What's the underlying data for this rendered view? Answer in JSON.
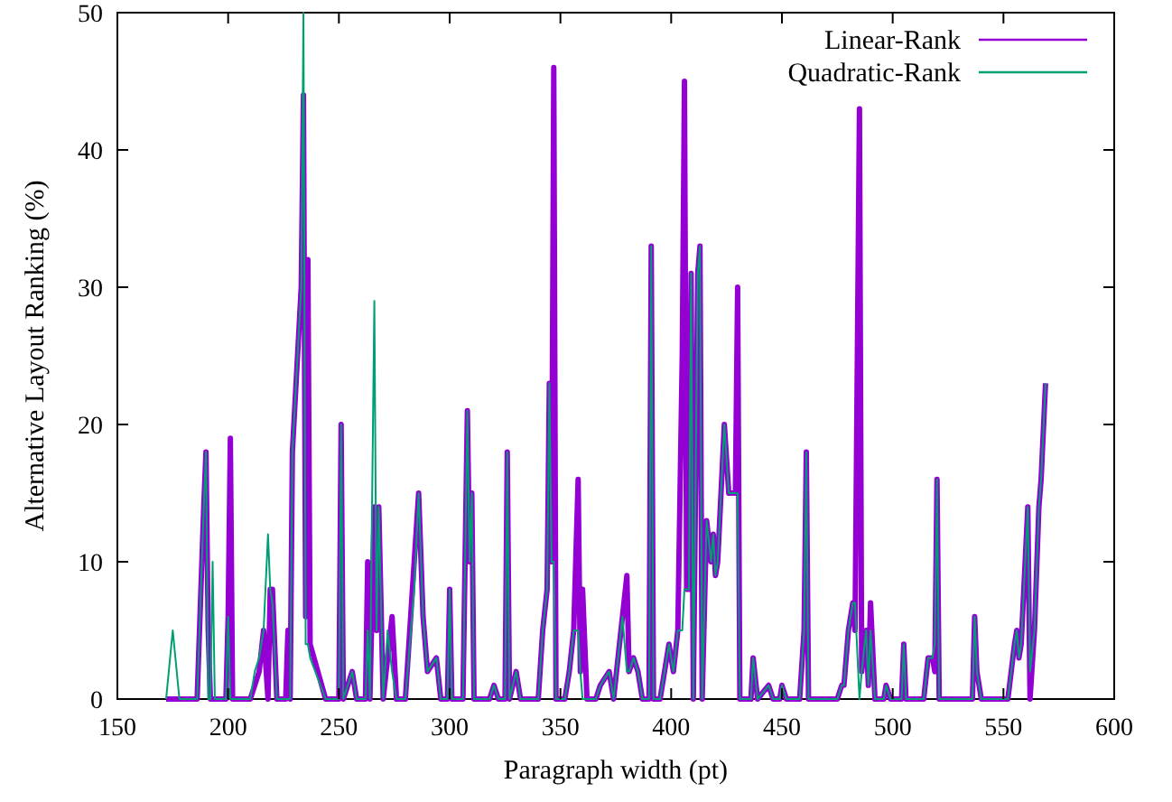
{
  "chart_data": {
    "type": "line",
    "xlabel": "Paragraph width (pt)",
    "ylabel": "Alternative Layout Ranking (%)",
    "xlim": [
      150,
      600
    ],
    "ylim": [
      0,
      50
    ],
    "xticks": [
      150,
      200,
      250,
      300,
      350,
      400,
      450,
      500,
      550,
      600
    ],
    "yticks": [
      0,
      10,
      20,
      30,
      40,
      50
    ],
    "grid": false,
    "legend": "top right",
    "marker": "none",
    "line_style": "solid",
    "x": [
      172,
      175,
      178,
      186,
      189,
      190,
      191,
      192,
      193,
      194,
      199,
      200,
      201,
      202,
      210,
      212,
      214,
      216,
      218,
      219,
      220,
      222,
      226,
      227,
      228,
      229,
      233,
      234,
      235,
      236,
      237,
      244,
      250,
      251,
      252,
      256,
      258,
      262,
      263,
      264,
      266,
      267,
      268,
      270,
      272,
      274,
      276,
      280,
      284,
      286,
      288,
      290,
      294,
      296,
      299,
      300,
      301,
      306,
      308,
      309,
      310,
      311,
      318,
      320,
      322,
      325,
      326,
      327,
      330,
      332,
      340,
      342,
      344,
      345,
      346,
      347,
      348,
      352,
      354,
      356,
      358,
      359,
      360,
      362,
      366,
      368,
      372,
      374,
      378,
      380,
      381,
      383,
      385,
      387,
      390,
      391,
      392,
      395,
      397,
      399,
      401,
      403,
      405,
      406,
      407,
      408,
      409,
      410,
      412,
      413,
      414,
      416,
      418,
      419,
      420,
      421,
      424,
      426,
      429,
      430,
      431,
      436,
      437,
      439,
      444,
      446,
      449,
      450,
      452,
      458,
      460,
      461,
      462,
      475,
      477,
      478,
      480,
      482,
      483,
      485,
      486,
      488,
      489,
      490,
      492,
      496,
      497,
      499,
      504,
      505,
      506,
      514,
      516,
      518,
      519,
      520,
      521,
      530,
      536,
      537,
      538,
      540,
      552,
      555,
      556,
      557,
      558,
      561,
      562,
      564,
      566,
      567,
      569
    ],
    "series": [
      {
        "name": "Linear-Rank",
        "color": "#9400d3",
        "values": [
          0,
          0,
          0,
          0,
          14,
          18,
          5,
          0,
          0,
          0,
          0,
          6,
          19,
          0,
          0,
          1,
          2,
          5,
          0,
          8,
          8,
          0,
          0,
          5,
          0,
          18,
          30,
          44,
          6,
          32,
          4,
          0,
          0,
          20,
          0,
          2,
          0,
          0,
          10,
          0,
          14,
          5,
          14,
          0,
          3,
          6,
          0,
          0,
          10,
          15,
          6,
          2,
          3,
          0,
          0,
          8,
          0,
          0,
          21,
          10,
          15,
          0,
          0,
          1,
          0,
          0,
          18,
          0,
          2,
          0,
          0,
          5,
          8,
          23,
          10,
          46,
          0,
          0,
          2,
          5,
          16,
          2,
          8,
          0,
          0,
          1,
          2,
          0,
          6,
          9,
          2,
          3,
          2,
          0,
          0,
          33,
          0,
          0,
          2,
          4,
          2,
          5,
          25,
          45,
          8,
          8,
          31,
          0,
          31,
          33,
          0,
          13,
          10,
          12,
          9,
          10,
          20,
          15,
          15,
          30,
          0,
          0,
          3,
          0,
          1,
          0,
          0,
          1,
          0,
          0,
          5,
          18,
          0,
          0,
          1,
          1,
          5,
          7,
          5,
          43,
          2,
          5,
          1,
          7,
          0,
          0,
          1,
          0,
          0,
          4,
          0,
          0,
          3,
          3,
          2,
          16,
          0,
          0,
          0,
          6,
          2,
          0,
          0,
          4,
          5,
          3,
          4,
          14,
          0,
          5,
          14,
          16,
          23
        ]
      },
      {
        "name": "Quadratic-Rank",
        "color": "#009e73",
        "values": [
          0,
          5,
          0,
          0,
          14,
          18,
          0,
          0,
          10,
          0,
          0,
          6,
          0,
          0,
          0,
          2,
          3,
          5,
          12,
          8,
          7,
          0,
          0,
          0,
          0,
          18,
          30,
          50,
          4,
          4,
          3,
          0,
          0,
          20,
          0,
          2,
          0,
          0,
          5,
          0,
          29,
          5,
          14,
          0,
          5,
          2,
          0,
          0,
          8,
          15,
          6,
          2,
          3,
          0,
          0,
          8,
          0,
          0,
          21,
          10,
          15,
          0,
          0,
          1,
          0,
          0,
          18,
          0,
          2,
          0,
          0,
          5,
          8,
          23,
          10,
          10,
          0,
          0,
          2,
          5,
          5,
          2,
          0,
          0,
          0,
          1,
          2,
          0,
          6,
          2,
          2,
          3,
          2,
          0,
          0,
          33,
          0,
          0,
          2,
          4,
          2,
          5,
          5,
          8,
          8,
          8,
          31,
          0,
          31,
          33,
          0,
          13,
          10,
          12,
          9,
          10,
          20,
          15,
          15,
          15,
          0,
          0,
          3,
          0,
          1,
          0,
          0,
          1,
          0,
          0,
          5,
          18,
          0,
          0,
          1,
          1,
          5,
          7,
          7,
          0,
          2,
          5,
          1,
          5,
          0,
          0,
          1,
          0,
          0,
          4,
          0,
          0,
          3,
          3,
          4,
          16,
          0,
          0,
          0,
          6,
          2,
          0,
          0,
          4,
          5,
          3,
          4,
          14,
          2,
          5,
          14,
          16,
          23
        ]
      }
    ]
  }
}
